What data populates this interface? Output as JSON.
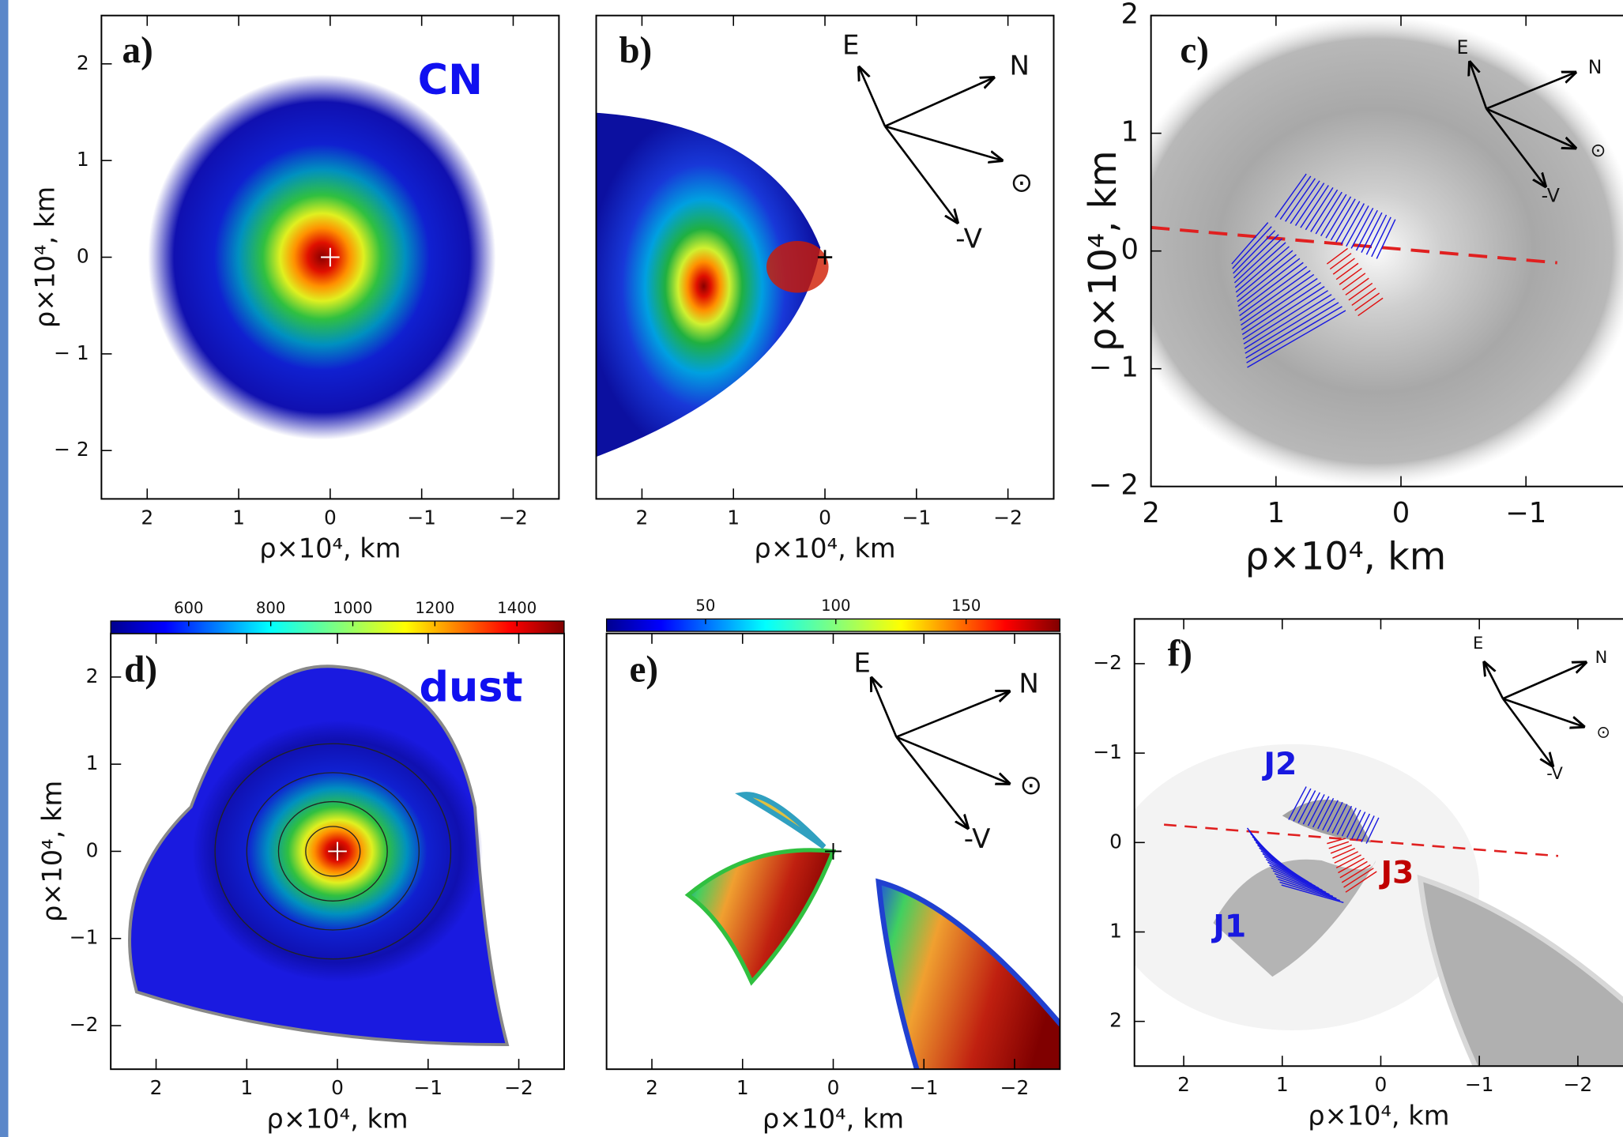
{
  "chart_data": [
    {
      "type": "image",
      "label": "a)",
      "annotation": "CN",
      "xlabel": "ρ×10⁴, km",
      "ylabel": "ρ×10⁴, km",
      "xlim": [
        2.5,
        -2.5
      ],
      "ylim": [
        -2.5,
        2.5
      ],
      "xticks": [
        2,
        1,
        0,
        {
          "value": -1,
          "label": "−1"
        },
        {
          "value": -2,
          "label": "−2"
        }
      ],
      "yticks": [
        2,
        1,
        0,
        {
          "value": -1,
          "label": "− 1"
        },
        {
          "value": -2,
          "label": "− 2"
        }
      ]
    },
    {
      "type": "image",
      "label": "b)",
      "xlabel": "ρ×10⁴, km",
      "xlim": [
        2.5,
        -2.5
      ],
      "ylim": [
        -2.5,
        2.5
      ],
      "xticks": [
        2,
        1,
        0,
        {
          "value": -1,
          "label": "−1"
        },
        {
          "value": -2,
          "label": "−2"
        }
      ],
      "compass": [
        "E",
        "N",
        "⊙",
        "-V"
      ]
    },
    {
      "type": "image",
      "label": "c)",
      "xlabel": "ρ×10⁴, km",
      "ylabel": "ρ×10⁴, km",
      "xlim": [
        2,
        -2
      ],
      "ylim": [
        -2,
        2
      ],
      "xticks": [
        2,
        1,
        0,
        {
          "value": -1,
          "label": "−1"
        }
      ],
      "yticks": [
        2,
        1,
        0,
        {
          "value": -1,
          "label": "− 1"
        },
        {
          "value": -2,
          "label": "− 2"
        }
      ],
      "compass": [
        "E",
        "N",
        "⊙",
        "-V"
      ]
    },
    {
      "type": "image",
      "label": "d)",
      "annotation": "dust",
      "xlabel": "ρ×10⁴, km",
      "ylabel": "ρ×10⁴, km",
      "xlim": [
        2.5,
        -2.5
      ],
      "ylim": [
        -2.5,
        2.5
      ],
      "xticks": [
        2,
        1,
        0,
        {
          "value": -1,
          "label": "−1"
        },
        {
          "value": -2,
          "label": "−2"
        }
      ],
      "yticks": [
        2,
        1,
        0,
        {
          "value": -1,
          "label": "−1"
        },
        {
          "value": -2,
          "label": "−2"
        }
      ],
      "colorbar": {
        "clim": [
          410,
          1515
        ],
        "ticks": [
          600,
          800,
          1000,
          1200,
          1400
        ]
      }
    },
    {
      "type": "image",
      "label": "e)",
      "xlabel": "ρ×10⁴, km",
      "xlim": [
        2.5,
        -2.5
      ],
      "ylim": [
        -2.5,
        2.5
      ],
      "xticks": [
        2,
        1,
        0,
        {
          "value": -1,
          "label": "−1"
        },
        {
          "value": -2,
          "label": "−2"
        }
      ],
      "colorbar": {
        "clim": [
          12,
          186
        ],
        "ticks": [
          50,
          100,
          150
        ]
      },
      "compass": [
        "E",
        "N",
        "⊙",
        "-V"
      ]
    },
    {
      "type": "image",
      "label": "f)",
      "xlabel": "ρ×10⁴, km",
      "xlim": [
        2.5,
        -2.5
      ],
      "ylim": [
        2.5,
        -2.5
      ],
      "xticks": [
        2,
        1,
        0,
        {
          "value": -1,
          "label": "−1"
        },
        {
          "value": -2,
          "label": "−2"
        }
      ],
      "yticks": [
        {
          "value": -2,
          "label": "−2"
        },
        {
          "value": -1,
          "label": "−1"
        },
        0,
        1,
        2
      ],
      "compass": [
        "E",
        "N",
        "⊙",
        "-V"
      ],
      "jets": [
        "J1",
        "J2",
        "J3"
      ]
    }
  ]
}
